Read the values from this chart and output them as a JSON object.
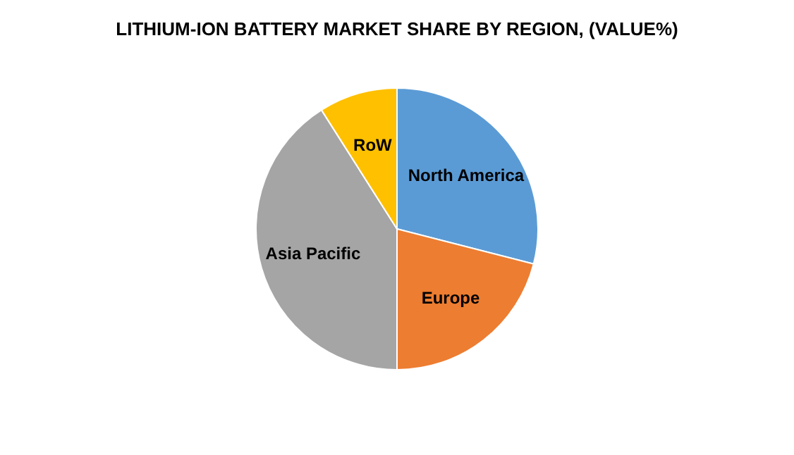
{
  "chart_data": {
    "type": "pie",
    "title": "LITHIUM-ION BATTERY MARKET SHARE BY REGION, (VALUE%)",
    "categories": [
      "North America",
      "Europe",
      "Asia Pacific",
      "RoW"
    ],
    "values": [
      29,
      21,
      41,
      9
    ],
    "colors": [
      "#5b9bd5",
      "#ed7d31",
      "#a5a5a5",
      "#ffc000"
    ]
  }
}
